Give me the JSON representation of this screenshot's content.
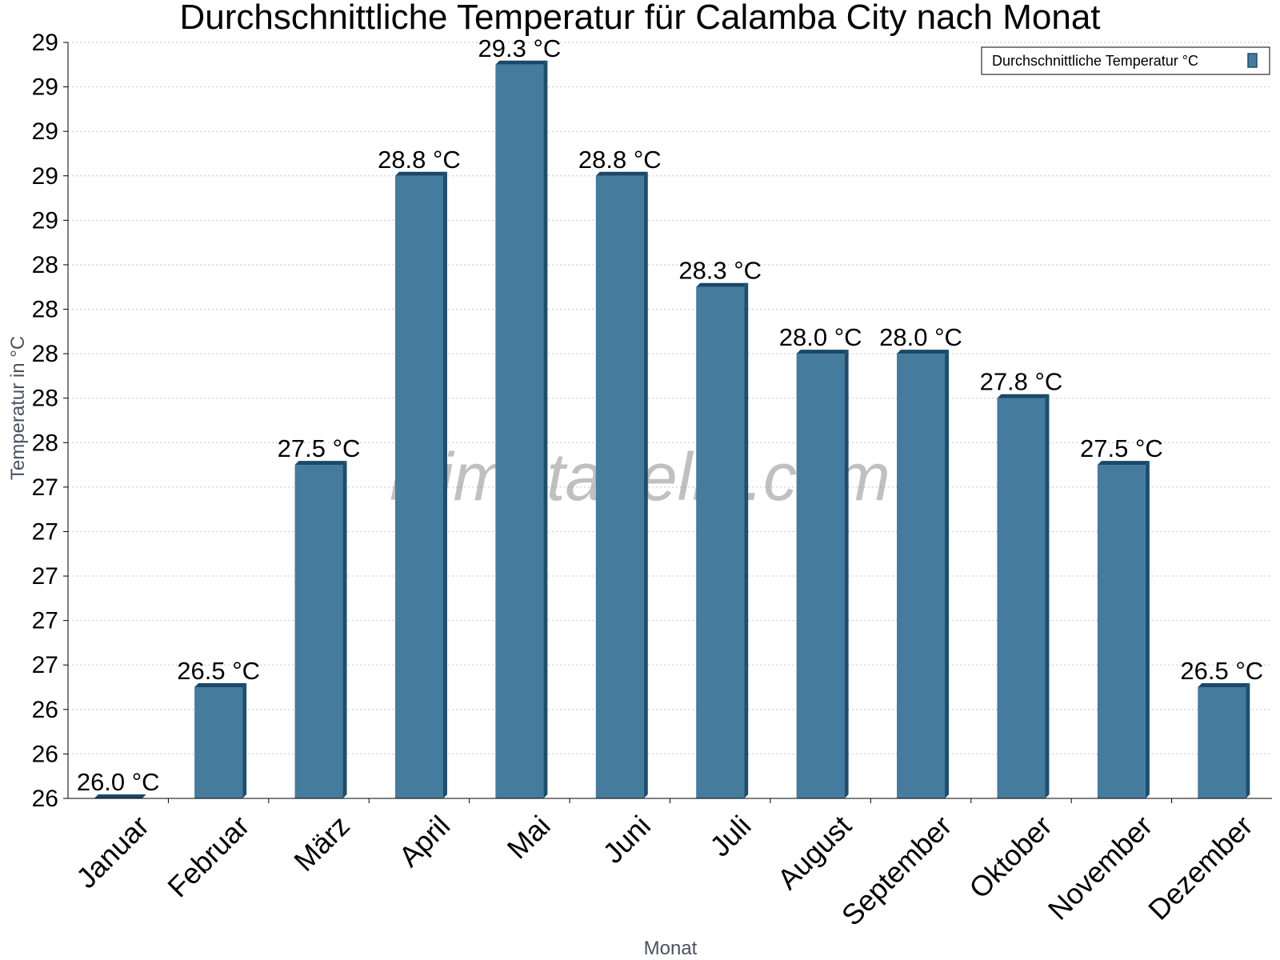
{
  "chart_data": {
    "type": "bar",
    "title": "Durchschnittliche Temperatur für Calamba City nach Monat",
    "xlabel": "Monat",
    "ylabel": "Temperatur in °C",
    "categories": [
      "Januar",
      "Februar",
      "März",
      "April",
      "Mai",
      "Juni",
      "Juli",
      "August",
      "September",
      "Oktober",
      "November",
      "Dezember"
    ],
    "series": [
      {
        "name": "Durchschnittliche Temperatur °C",
        "values": [
          26.0,
          26.5,
          27.5,
          28.8,
          29.3,
          28.8,
          28.3,
          28.0,
          28.0,
          27.8,
          27.5,
          26.5
        ],
        "labels": [
          "26.0 °C",
          "26.5 °C",
          "27.5 °C",
          "28.8 °C",
          "29.3 °C",
          "28.8 °C",
          "28.3 °C",
          "28.0 °C",
          "28.0 °C",
          "27.8 °C",
          "27.5 °C",
          "26.5 °C"
        ]
      }
    ],
    "ylim": [
      26.0,
      29.4
    ],
    "yticks": [
      26.0,
      26.2,
      26.4,
      26.6,
      26.8,
      27.0,
      27.2,
      27.4,
      27.6,
      27.8,
      28.0,
      28.2,
      28.4,
      28.6,
      28.8,
      29.0,
      29.2,
      29.4
    ],
    "ytick_labels": [
      "26",
      "26",
      "26",
      "27",
      "27",
      "27",
      "27",
      "27",
      "28",
      "28",
      "28",
      "28",
      "28",
      "29",
      "29",
      "29",
      "29",
      "29"
    ],
    "grid": true,
    "legend_position": "top-right",
    "watermark": "klimatabelle.com",
    "colors": {
      "bar_face": "#457b9d",
      "bar_side": "#1d4e6e",
      "bar_top": "#1a4868",
      "grid": "#c8c8c8"
    }
  }
}
